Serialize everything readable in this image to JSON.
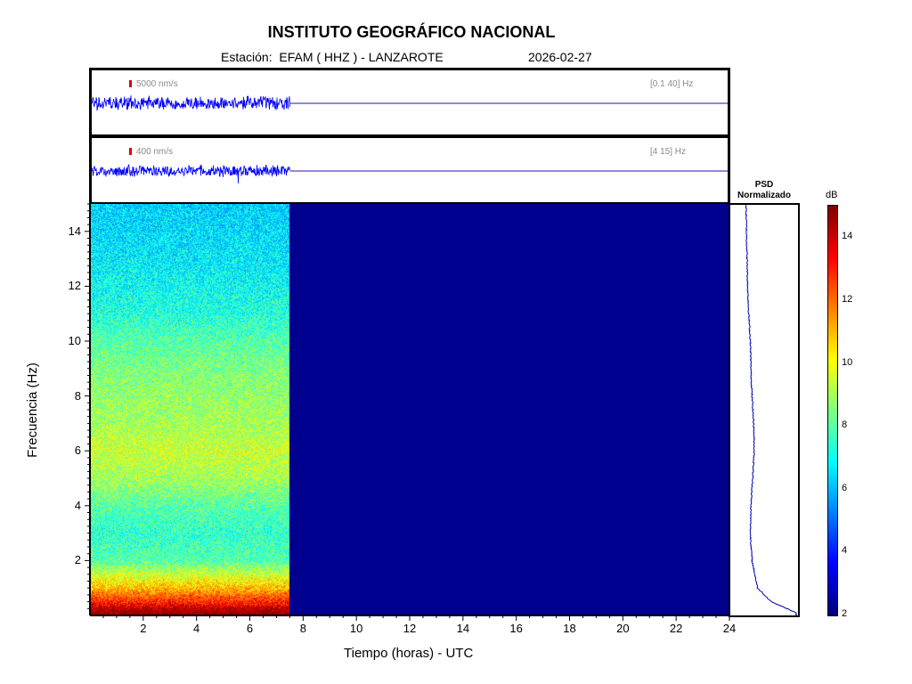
{
  "header": {
    "title": "INSTITUTO GEOGRÁFICO NACIONAL",
    "station_label": "Estación:  EFAM ( HHZ ) - LANZAROTE",
    "date": "2026-02-27"
  },
  "trace1": {
    "scale": "5000 nm/s",
    "band": "[0.1 40] Hz"
  },
  "trace2": {
    "scale": "400 nm/s",
    "band": "[4 15] Hz"
  },
  "psd": {
    "title_line1": "PSD",
    "title_line2": "Normalizado"
  },
  "colorbar": {
    "unit": "dB",
    "min": 2,
    "max": 15,
    "ticks": [
      "2",
      "4",
      "6",
      "8",
      "10",
      "12",
      "14"
    ]
  },
  "colors": {
    "trace": "#0000ff",
    "no_data": "#00008f",
    "scale_marker": "#e00000"
  },
  "chart_data": {
    "type": "heatmap",
    "xlabel": "Tiempo (horas) - UTC",
    "ylabel": "Frecuencia  (Hz)",
    "xlim": [
      0,
      24
    ],
    "ylim": [
      0,
      15
    ],
    "xticks": [
      "2",
      "4",
      "6",
      "8",
      "10",
      "12",
      "14",
      "16",
      "18",
      "20",
      "22",
      "24"
    ],
    "yticks": [
      "2",
      "4",
      "6",
      "8",
      "10",
      "12",
      "14"
    ],
    "data_end_hour": 7.5,
    "colormap": "jet",
    "spectrogram_profile_db": [
      {
        "freq": 0.1,
        "db": 15
      },
      {
        "freq": 0.5,
        "db": 13
      },
      {
        "freq": 1,
        "db": 11
      },
      {
        "freq": 2,
        "db": 8
      },
      {
        "freq": 3,
        "db": 7.5
      },
      {
        "freq": 4,
        "db": 8
      },
      {
        "freq": 5,
        "db": 9
      },
      {
        "freq": 6,
        "db": 9.5
      },
      {
        "freq": 7,
        "db": 9
      },
      {
        "freq": 8,
        "db": 8.8
      },
      {
        "freq": 9,
        "db": 8.5
      },
      {
        "freq": 10,
        "db": 8
      },
      {
        "freq": 11,
        "db": 7.3
      },
      {
        "freq": 12,
        "db": 7
      },
      {
        "freq": 13,
        "db": 6.7
      },
      {
        "freq": 14,
        "db": 6.5
      },
      {
        "freq": 15,
        "db": 6.3
      }
    ],
    "psd_normalized": [
      {
        "freq": 0.1,
        "value": 1.0
      },
      {
        "freq": 0.5,
        "value": 0.55
      },
      {
        "freq": 1,
        "value": 0.3
      },
      {
        "freq": 2,
        "value": 0.2
      },
      {
        "freq": 3,
        "value": 0.17
      },
      {
        "freq": 4,
        "value": 0.18
      },
      {
        "freq": 5,
        "value": 0.21
      },
      {
        "freq": 6,
        "value": 0.24
      },
      {
        "freq": 7,
        "value": 0.23
      },
      {
        "freq": 8,
        "value": 0.2
      },
      {
        "freq": 9,
        "value": 0.18
      },
      {
        "freq": 10,
        "value": 0.17
      },
      {
        "freq": 11,
        "value": 0.14
      },
      {
        "freq": 12,
        "value": 0.12
      },
      {
        "freq": 13,
        "value": 0.11
      },
      {
        "freq": 14,
        "value": 0.1
      },
      {
        "freq": 15,
        "value": 0.09
      }
    ]
  }
}
